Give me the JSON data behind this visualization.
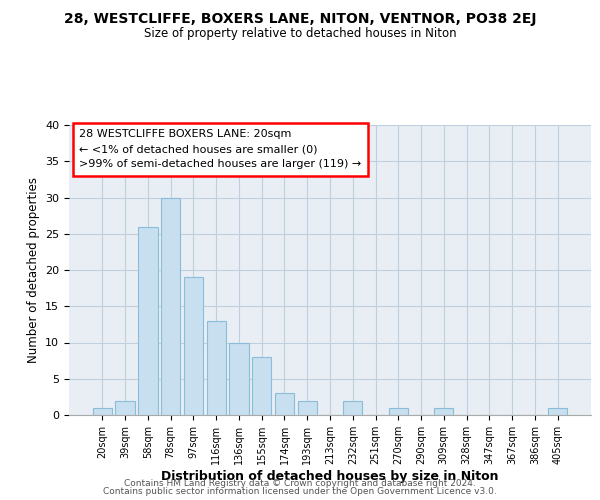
{
  "title1": "28, WESTCLIFFE, BOXERS LANE, NITON, VENTNOR, PO38 2EJ",
  "title2": "Size of property relative to detached houses in Niton",
  "xlabel": "Distribution of detached houses by size in Niton",
  "ylabel": "Number of detached properties",
  "bar_labels": [
    "20sqm",
    "39sqm",
    "58sqm",
    "78sqm",
    "97sqm",
    "116sqm",
    "136sqm",
    "155sqm",
    "174sqm",
    "193sqm",
    "213sqm",
    "232sqm",
    "251sqm",
    "270sqm",
    "290sqm",
    "309sqm",
    "328sqm",
    "347sqm",
    "367sqm",
    "386sqm",
    "405sqm"
  ],
  "bar_values": [
    1,
    2,
    26,
    30,
    19,
    13,
    10,
    8,
    3,
    2,
    0,
    2,
    0,
    1,
    0,
    1,
    0,
    0,
    0,
    0,
    1
  ],
  "bar_color": "#c8dff0",
  "bar_edgecolor": "#8bbcd8",
  "annotation_box_text": "28 WESTCLIFFE BOXERS LANE: 20sqm\n← <1% of detached houses are smaller (0)\n>99% of semi-detached houses are larger (119) →",
  "ylim": [
    0,
    40
  ],
  "yticks": [
    0,
    5,
    10,
    15,
    20,
    25,
    30,
    35,
    40
  ],
  "footer1": "Contains HM Land Registry data © Crown copyright and database right 2024.",
  "footer2": "Contains public sector information licensed under the Open Government Licence v3.0.",
  "background_color": "#e8eef4",
  "plot_background": "#ffffff",
  "grid_color": "#c0cfe0"
}
